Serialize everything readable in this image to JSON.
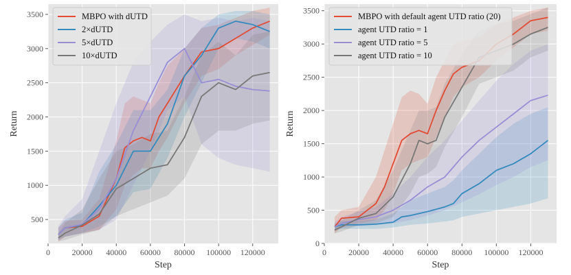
{
  "chart_data": [
    {
      "type": "line",
      "xlabel": "Step",
      "ylabel": "Return",
      "xlim": [
        0,
        135000
      ],
      "ylim": [
        150,
        3650
      ],
      "xticks": [
        0,
        20000,
        40000,
        60000,
        80000,
        100000,
        120000
      ],
      "xtick_labels": [
        "0",
        "20000",
        "40000",
        "60000",
        "80000",
        "100000",
        "120000"
      ],
      "yticks": [
        500,
        1000,
        1500,
        2000,
        2500,
        3000,
        3500
      ],
      "ytick_labels": [
        "500",
        "1000",
        "1500",
        "2000",
        "2500",
        "3000",
        "3500"
      ],
      "legend_position": "upper-left",
      "series": [
        {
          "name": "MBPO with dUTD",
          "color": "#e24a33",
          "x": [
            6000,
            10000,
            20000,
            30000,
            40000,
            45000,
            50000,
            55000,
            60000,
            65000,
            70000,
            80000,
            90000,
            100000,
            110000,
            120000,
            130000
          ],
          "y": [
            280,
            380,
            400,
            550,
            1100,
            1550,
            1650,
            1700,
            1650,
            2000,
            2200,
            2600,
            2950,
            3000,
            3150,
            3300,
            3400
          ],
          "lower": [
            180,
            250,
            300,
            350,
            650,
            1000,
            1150,
            1250,
            1250,
            1500,
            1700,
            2200,
            2600,
            2700,
            2900,
            3050,
            3200
          ],
          "upper": [
            380,
            480,
            500,
            800,
            1650,
            2200,
            2300,
            2250,
            2200,
            2500,
            2750,
            3000,
            3300,
            3350,
            3450,
            3550,
            3600
          ]
        },
        {
          "name": "2×dUTD",
          "color": "#348abd",
          "x": [
            6000,
            10000,
            20000,
            30000,
            40000,
            50000,
            60000,
            70000,
            80000,
            90000,
            100000,
            110000,
            120000,
            130000
          ],
          "y": [
            280,
            380,
            420,
            700,
            1000,
            1500,
            1500,
            1900,
            2600,
            2900,
            3300,
            3400,
            3350,
            3250
          ],
          "lower": [
            200,
            250,
            300,
            400,
            550,
            900,
            950,
            1400,
            2000,
            2500,
            3000,
            3150,
            3100,
            3000
          ],
          "upper": [
            380,
            500,
            600,
            1200,
            1600,
            2100,
            2100,
            2400,
            3000,
            3300,
            3500,
            3550,
            3550,
            3500
          ]
        },
        {
          "name": "5×dUTD",
          "color": "#988ed5",
          "x": [
            6000,
            10000,
            20000,
            30000,
            40000,
            50000,
            60000,
            70000,
            80000,
            90000,
            100000,
            110000,
            120000,
            130000
          ],
          "y": [
            280,
            380,
            430,
            650,
            1100,
            1800,
            2300,
            2800,
            3000,
            2500,
            2550,
            2450,
            2400,
            2380
          ],
          "lower": [
            200,
            250,
            300,
            350,
            500,
            1000,
            1500,
            2100,
            2300,
            1600,
            1400,
            1300,
            1250,
            1200
          ],
          "upper": [
            400,
            550,
            800,
            1500,
            2200,
            2800,
            3100,
            3350,
            3500,
            3400,
            3450,
            3400,
            3450,
            3400
          ]
        },
        {
          "name": "10×dUTD",
          "color": "#777777",
          "x": [
            6000,
            10000,
            20000,
            30000,
            40000,
            50000,
            60000,
            70000,
            80000,
            90000,
            100000,
            110000,
            120000,
            130000
          ],
          "y": [
            230,
            300,
            420,
            580,
            950,
            1100,
            1250,
            1300,
            1700,
            2300,
            2500,
            2400,
            2600,
            2650
          ],
          "lower": [
            180,
            200,
            280,
            350,
            550,
            650,
            750,
            850,
            1100,
            1600,
            1800,
            1800,
            1900,
            1950
          ],
          "upper": [
            300,
            450,
            650,
            1100,
            1500,
            1600,
            1750,
            1800,
            2300,
            2900,
            3100,
            2900,
            3200,
            3250
          ]
        }
      ]
    },
    {
      "type": "line",
      "xlabel": "Step",
      "ylabel": "Return",
      "xlim": [
        0,
        135000
      ],
      "ylim": [
        0,
        3600
      ],
      "xticks": [
        0,
        20000,
        40000,
        60000,
        80000,
        100000,
        120000
      ],
      "xtick_labels": [
        "0",
        "20000",
        "40000",
        "60000",
        "80000",
        "100000",
        "120000"
      ],
      "yticks": [
        0,
        500,
        1000,
        1500,
        2000,
        2500,
        3000,
        3500
      ],
      "ytick_labels": [
        "0",
        "500",
        "1000",
        "1500",
        "2000",
        "2500",
        "3000",
        "3500"
      ],
      "legend_position": "upper-left",
      "series": [
        {
          "name": "MBPO with default agent UTD ratio (20)",
          "color": "#e24a33",
          "x": [
            6000,
            10000,
            20000,
            30000,
            35000,
            40000,
            45000,
            50000,
            55000,
            60000,
            65000,
            70000,
            75000,
            80000,
            90000,
            100000,
            110000,
            120000,
            130000
          ],
          "y": [
            250,
            380,
            400,
            600,
            850,
            1200,
            1550,
            1650,
            1700,
            1650,
            2000,
            2300,
            2550,
            2650,
            2750,
            3000,
            3150,
            3350,
            3400
          ],
          "lower": [
            150,
            250,
            300,
            350,
            500,
            750,
            1100,
            1200,
            1250,
            1300,
            1600,
            1900,
            2200,
            2350,
            2500,
            2750,
            2950,
            3150,
            3200
          ],
          "upper": [
            400,
            500,
            550,
            1000,
            1400,
            1800,
            2200,
            2300,
            2250,
            2100,
            2500,
            2750,
            3000,
            3050,
            3100,
            3300,
            3400,
            3500,
            3550
          ]
        },
        {
          "name": "agent UTD ratio = 1",
          "color": "#348abd",
          "x": [
            6000,
            10000,
            20000,
            30000,
            40000,
            45000,
            50000,
            60000,
            70000,
            75000,
            80000,
            90000,
            100000,
            110000,
            120000,
            130000
          ],
          "y": [
            250,
            280,
            280,
            290,
            320,
            400,
            420,
            480,
            550,
            600,
            750,
            900,
            1100,
            1200,
            1350,
            1550
          ],
          "lower": [
            200,
            220,
            220,
            220,
            240,
            260,
            280,
            300,
            330,
            350,
            400,
            450,
            500,
            550,
            600,
            680
          ],
          "upper": [
            300,
            340,
            340,
            360,
            450,
            550,
            650,
            750,
            850,
            950,
            1100,
            1350,
            1600,
            1800,
            1950,
            2050
          ]
        },
        {
          "name": "agent UTD ratio = 5",
          "color": "#988ed5",
          "x": [
            6000,
            10000,
            20000,
            30000,
            40000,
            50000,
            60000,
            70000,
            80000,
            90000,
            100000,
            110000,
            120000,
            130000
          ],
          "y": [
            250,
            300,
            360,
            400,
            500,
            650,
            850,
            1000,
            1300,
            1550,
            1750,
            1950,
            2150,
            2230
          ],
          "lower": [
            200,
            230,
            260,
            280,
            300,
            350,
            420,
            500,
            620,
            740,
            880,
            1000,
            1150,
            1250
          ],
          "upper": [
            320,
            400,
            480,
            550,
            750,
            1000,
            1300,
            1550,
            1850,
            2150,
            2450,
            2700,
            2900,
            3000
          ]
        },
        {
          "name": "agent UTD ratio = 10",
          "color": "#777777",
          "x": [
            6000,
            10000,
            20000,
            30000,
            40000,
            50000,
            55000,
            60000,
            65000,
            70000,
            80000,
            90000,
            100000,
            110000,
            120000,
            130000
          ],
          "y": [
            200,
            250,
            380,
            450,
            700,
            1200,
            1550,
            1500,
            1550,
            1900,
            2350,
            2800,
            2900,
            3000,
            3150,
            3250
          ],
          "lower": [
            150,
            180,
            280,
            300,
            400,
            750,
            1000,
            1050,
            1150,
            1450,
            1900,
            2400,
            2500,
            2600,
            2800,
            2900
          ],
          "upper": [
            280,
            350,
            500,
            650,
            1100,
            1700,
            2000,
            2000,
            2050,
            2400,
            2850,
            3200,
            3300,
            3350,
            3450,
            3550
          ]
        }
      ]
    }
  ]
}
